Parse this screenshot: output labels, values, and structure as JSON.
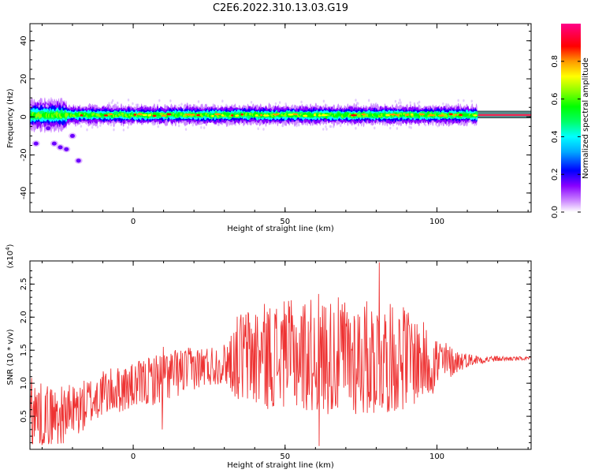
{
  "title": "C2E6.2022.310.13.03.G19",
  "chart_data": [
    {
      "type": "heatmap",
      "xlabel": "Height of straight line (km)",
      "ylabel": "Frequency (Hz)",
      "xlim": [
        -34,
        131
      ],
      "ylim": [
        -50,
        49
      ],
      "xticks": [
        0,
        50,
        100
      ],
      "yticks": [
        -40,
        -20,
        0,
        20,
        40
      ],
      "grid": false,
      "colorbar": {
        "label": "Normalized spectral amplitude",
        "range": [
          0.0,
          1.0
        ],
        "ticks": [
          0.0,
          0.2,
          0.4,
          0.6,
          0.8
        ],
        "colors": [
          "#ffffff",
          "#cc88ff",
          "#8800ff",
          "#0000ff",
          "#00aaff",
          "#00ffff",
          "#00ff66",
          "#00ff00",
          "#88ff00",
          "#ffff00",
          "#ff9900",
          "#ff0000",
          "#ff0088"
        ]
      },
      "reference_band": {
        "x": [
          113,
          131
        ],
        "y": [
          -0.5,
          3
        ]
      },
      "main_ridge": {
        "x": [
          -34,
          113
        ],
        "frequency_hz": 1,
        "half_width_hz": 4
      },
      "scatter_blobs_hz": [
        {
          "x": -32,
          "y": -14
        },
        {
          "x": -28,
          "y": -6
        },
        {
          "x": -26,
          "y": -14
        },
        {
          "x": -24,
          "y": -16
        },
        {
          "x": -22,
          "y": -17
        },
        {
          "x": -20,
          "y": -10
        },
        {
          "x": -18,
          "y": -23
        }
      ]
    },
    {
      "type": "line",
      "xlabel": "Height of straight line (km)",
      "ylabel": "SNR (10 * v/v)",
      "y_multiplier": "(x10",
      "y_multiplier_exp": "4",
      "y_multiplier_close": ")",
      "xlim": [
        -34,
        131
      ],
      "ylim": [
        0,
        2.85
      ],
      "xticks": [
        0,
        50,
        100
      ],
      "yticks": [
        0.5,
        1.0,
        1.5,
        2.0,
        2.5
      ],
      "ytick_labels": [
        "0.5",
        "1.0",
        "1.5",
        "2.0",
        "2.5"
      ],
      "grid": false,
      "series": [
        {
          "color": "#ee3333",
          "envelope": {
            "x": [
              -34,
              -25,
              -18,
              -10,
              0,
              10,
              20,
              30,
              35,
              40,
              50,
              60,
              70,
              80,
              90,
              100,
              105,
              110,
              115,
              120,
              131
            ],
            "low": [
              0.05,
              0.05,
              0.2,
              0.5,
              0.6,
              0.7,
              0.9,
              1.0,
              0.7,
              0.6,
              0.6,
              0.55,
              0.5,
              0.5,
              0.6,
              0.85,
              1.1,
              1.25,
              1.3,
              1.33,
              1.35
            ],
            "high": [
              1.05,
              0.95,
              1.0,
              1.2,
              1.3,
              1.5,
              1.55,
              1.6,
              2.1,
              2.2,
              2.25,
              2.3,
              2.3,
              2.25,
              2.15,
              1.75,
              1.55,
              1.45,
              1.42,
              1.41,
              1.4
            ]
          },
          "spikes": [
            {
              "x": -33.5,
              "y": 1.08
            },
            {
              "x": 10,
              "y": 1.55
            },
            {
              "x": 50,
              "y": 2.05
            },
            {
              "x": 61,
              "y": 2.35
            },
            {
              "x": 61.3,
              "y": 0.05
            },
            {
              "x": 81,
              "y": 2.83
            },
            {
              "x": 9.5,
              "y": 0.3
            },
            {
              "x": 89,
              "y": 2.15
            }
          ]
        }
      ]
    }
  ]
}
